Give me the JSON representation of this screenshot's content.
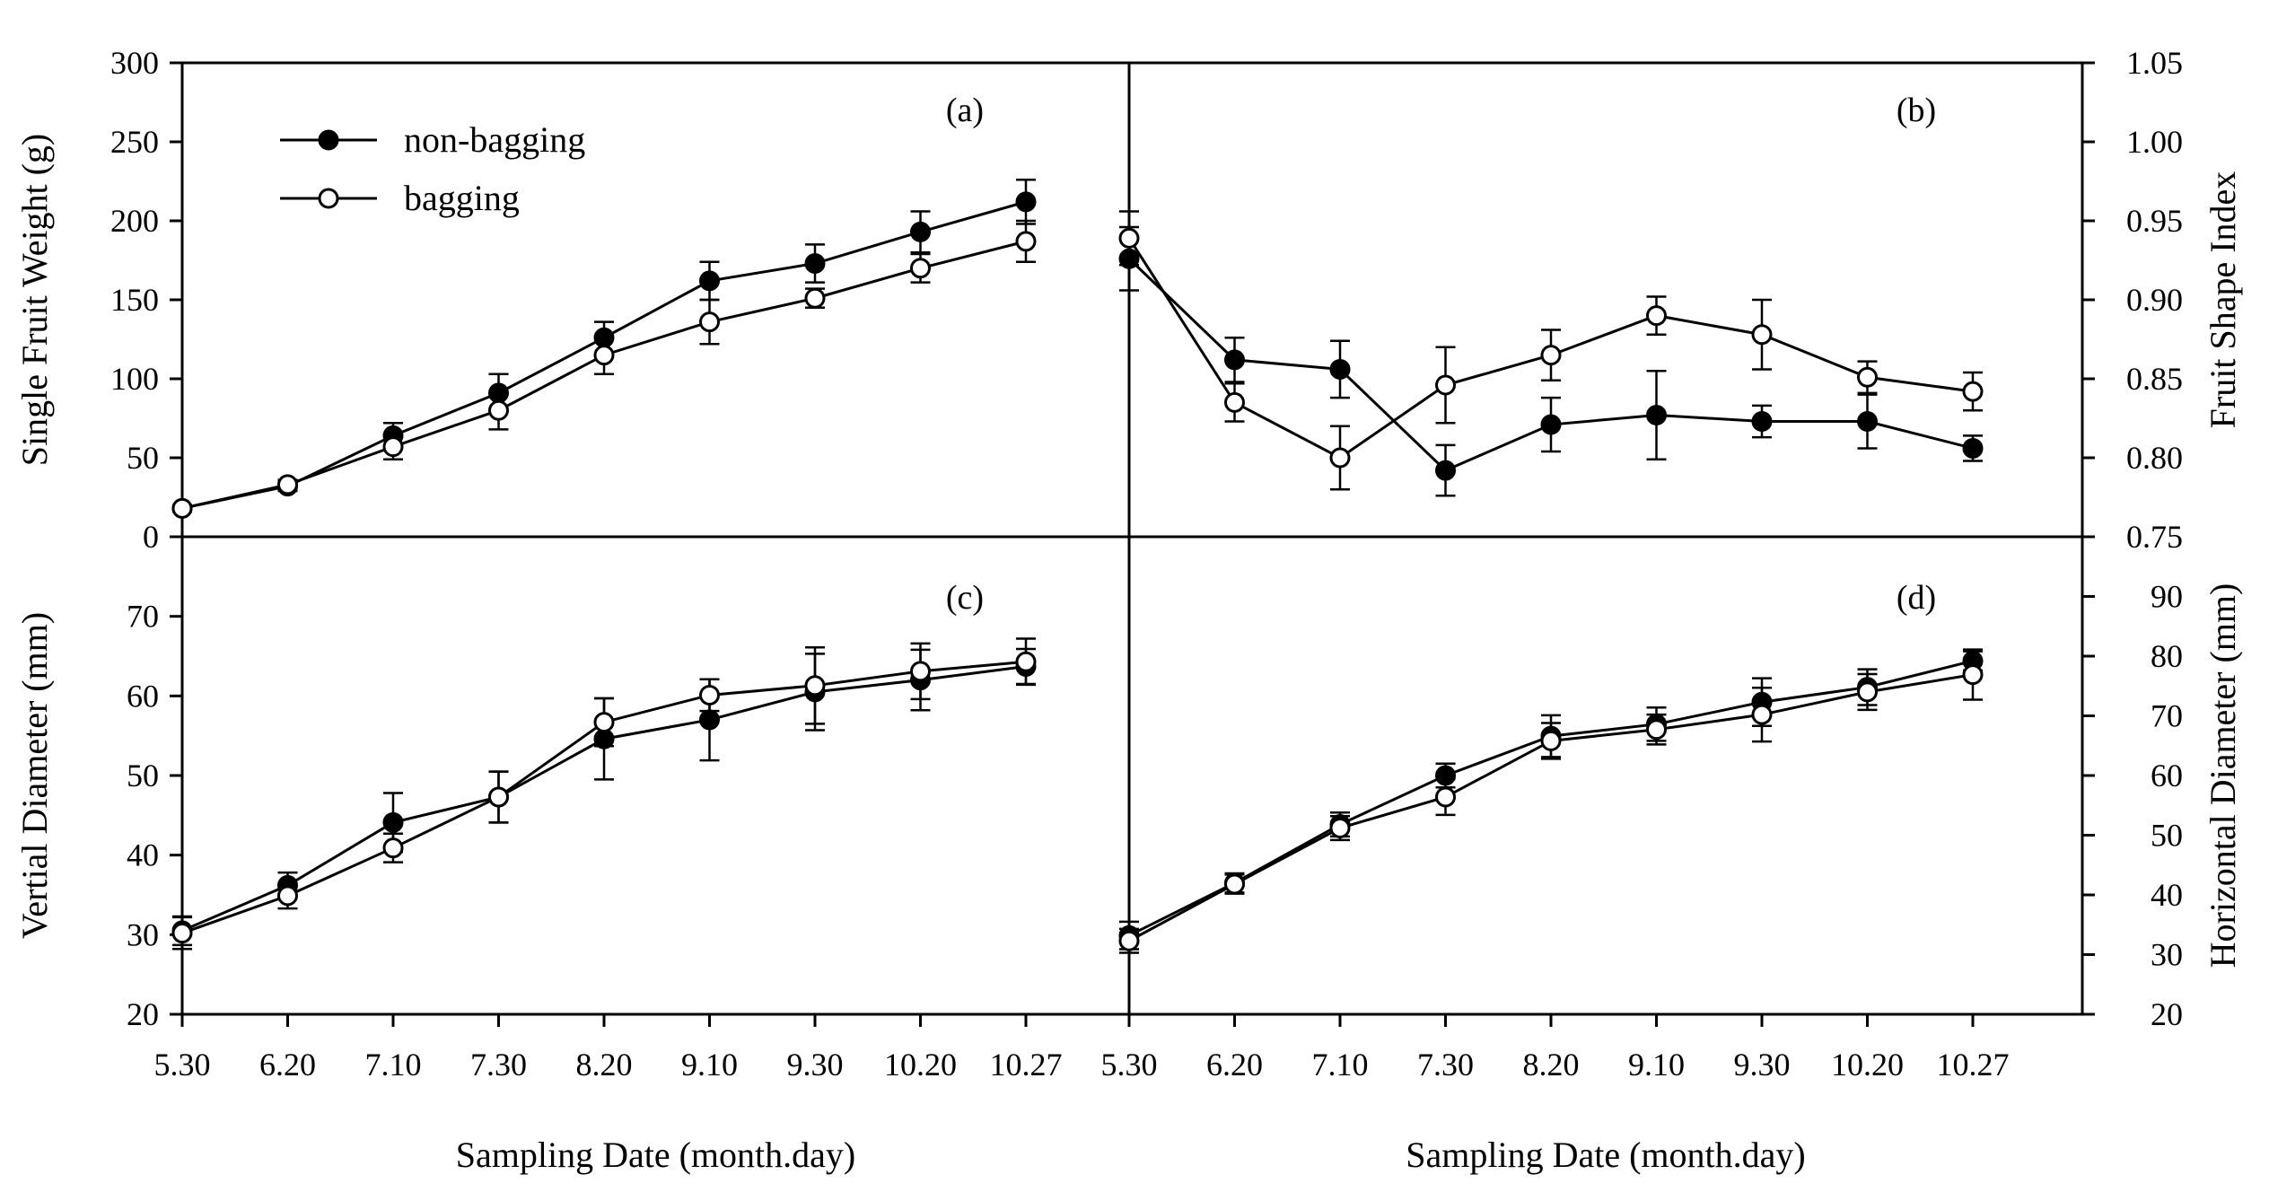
{
  "chart_data": [
    {
      "id": "a",
      "type": "line",
      "panel_label": "(a)",
      "categories": [
        "5.30",
        "6.20",
        "7.10",
        "7.30",
        "8.20",
        "9.10",
        "9.30",
        "10.20",
        "10.27"
      ],
      "ylabel": "Single Fruit Weight (g)",
      "ylim": [
        0,
        300
      ],
      "yticks": [
        "0",
        "50",
        "100",
        "150",
        "200",
        "250",
        "300"
      ],
      "series": [
        {
          "name": "non-bagging",
          "marker": "filled-circle",
          "values": [
            18,
            32,
            64,
            91,
            126,
            162,
            173,
            193,
            212
          ],
          "errors": [
            2,
            3,
            8,
            12,
            10,
            12,
            12,
            13,
            14
          ]
        },
        {
          "name": "bagging",
          "marker": "open-circle",
          "values": [
            18,
            33,
            57,
            80,
            115,
            136,
            151,
            170,
            187
          ],
          "errors": [
            2,
            3,
            8,
            12,
            12,
            14,
            6,
            9,
            13
          ]
        }
      ]
    },
    {
      "id": "b",
      "type": "line",
      "panel_label": "(b)",
      "categories": [
        "5.30",
        "6.20",
        "7.10",
        "7.30",
        "8.20",
        "9.10",
        "9.30",
        "10.20",
        "10.27"
      ],
      "ylabel": "Fruit Shape Index",
      "ylim": [
        0.75,
        1.05
      ],
      "yticks": [
        "0.75",
        "0.80",
        "0.85",
        "0.90",
        "0.95",
        "1.00",
        "1.05"
      ],
      "series": [
        {
          "name": "non-bagging",
          "marker": "filled-circle",
          "values": [
            0.926,
            0.862,
            0.856,
            0.792,
            0.821,
            0.827,
            0.823,
            0.823,
            0.806
          ],
          "errors": [
            0.02,
            0.014,
            0.018,
            0.016,
            0.017,
            0.028,
            0.01,
            0.017,
            0.008
          ]
        },
        {
          "name": "bagging",
          "marker": "open-circle",
          "values": [
            0.939,
            0.835,
            0.8,
            0.846,
            0.865,
            0.89,
            0.878,
            0.851,
            0.842
          ],
          "errors": [
            0.017,
            0.012,
            0.02,
            0.024,
            0.016,
            0.012,
            0.022,
            0.01,
            0.012
          ]
        }
      ]
    },
    {
      "id": "c",
      "type": "line",
      "panel_label": "(c)",
      "categories": [
        "5.30",
        "6.20",
        "7.10",
        "7.30",
        "8.20",
        "9.10",
        "9.30",
        "10.20",
        "10.27"
      ],
      "xlabel": "Sampling Date (month.day)",
      "ylabel": "Vertial Diameter (mm)",
      "ylim": [
        20,
        80
      ],
      "yticks": [
        "20",
        "30",
        "40",
        "50",
        "60",
        "70"
      ],
      "series": [
        {
          "name": "non-bagging",
          "marker": "filled-circle",
          "values": [
            30.5,
            36.2,
            44.1,
            47.3,
            54.6,
            57.0,
            60.5,
            62.0,
            63.7
          ],
          "errors": [
            1.8,
            1.6,
            3.7,
            3.2,
            5.1,
            5.1,
            4.8,
            3.8,
            2.2
          ]
        },
        {
          "name": "bagging",
          "marker": "open-circle",
          "values": [
            30.2,
            34.9,
            40.9,
            47.3,
            56.7,
            60.1,
            61.3,
            63.1,
            64.3
          ],
          "errors": [
            2.0,
            1.6,
            1.8,
            3.2,
            3.0,
            2.0,
            4.8,
            3.5,
            2.9
          ]
        }
      ]
    },
    {
      "id": "d",
      "type": "line",
      "panel_label": "(d)",
      "categories": [
        "5.30",
        "6.20",
        "7.10",
        "7.30",
        "8.20",
        "9.10",
        "9.30",
        "10.20",
        "10.27"
      ],
      "xlabel": "Sampling Date (month.day)",
      "ylabel": "Horizontal Diameter (mm)",
      "ylim": [
        20,
        100
      ],
      "yticks": [
        "20",
        "30",
        "40",
        "50",
        "60",
        "70",
        "80",
        "90"
      ],
      "series": [
        {
          "name": "non-bagging",
          "marker": "filled-circle",
          "values": [
            33.2,
            42.0,
            51.8,
            60.0,
            66.6,
            68.6,
            72.3,
            74.8,
            79.2
          ],
          "errors": [
            2.3,
            1.6,
            2.0,
            2.0,
            3.5,
            2.8,
            4.0,
            3.0,
            1.6
          ]
        },
        {
          "name": "bagging",
          "marker": "open-circle",
          "values": [
            32.3,
            41.8,
            51.2,
            56.4,
            65.8,
            67.7,
            70.2,
            74.0,
            76.9
          ],
          "errors": [
            2.0,
            1.6,
            2.0,
            3.0,
            3.0,
            2.5,
            4.5,
            3.0,
            4.2
          ]
        }
      ]
    }
  ],
  "legend": {
    "items": [
      {
        "label": "non-bagging",
        "marker": "filled-circle"
      },
      {
        "label": "bagging",
        "marker": "open-circle"
      }
    ],
    "placement": "top-left of panel (a)"
  }
}
